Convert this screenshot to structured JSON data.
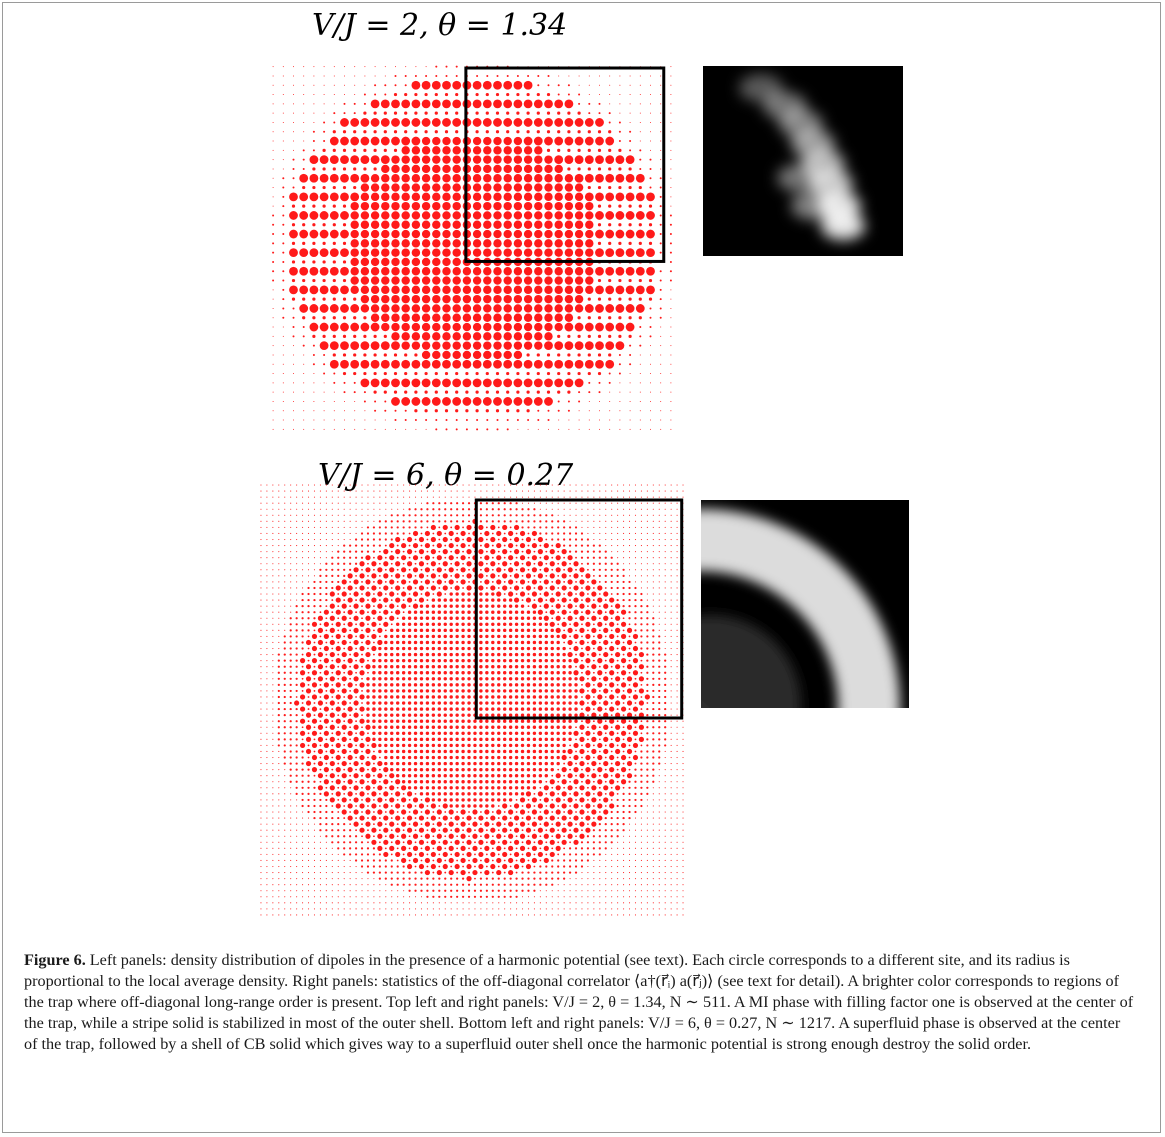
{
  "figure": {
    "top_panel": {
      "title": "V/J = 2,  θ = 1.34",
      "lattice_size": 40,
      "highlight_box": "upper-right quadrant"
    },
    "bottom_panel": {
      "title": "V/J = 6,  θ = 0.27",
      "lattice_size": 72,
      "highlight_box": "upper-right quadrant"
    },
    "colors": {
      "dots": "#ff1a1a",
      "box": "#000000",
      "correlator_background": "#000000"
    },
    "caption": {
      "label": "Figure 6.",
      "text": "Left panels: density distribution of dipoles in the presence of a harmonic potential (see text). Each circle corresponds to a different site, and its radius is proportional to the local average density. Right panels: statistics of the off-diagonal correlator ⟨a†(r⃗ᵢ) a(r⃗ⱼ)⟩ (see text for detail). A brighter color corresponds to regions of the trap where off-diagonal long-range order is present. Top left and right panels: V/J = 2, θ = 1.34, N ∼ 511. A MI phase with filling factor one is observed at the center of the trap, while a stripe solid is stabilized in most of the outer shell. Bottom left and right panels: V/J = 6, θ = 0.27, N ∼ 1217. A superfluid phase is observed at the center of the trap, followed by a shell of CB solid which gives way to a superfluid outer shell once the harmonic potential is strong enough destroy the solid order."
    }
  }
}
